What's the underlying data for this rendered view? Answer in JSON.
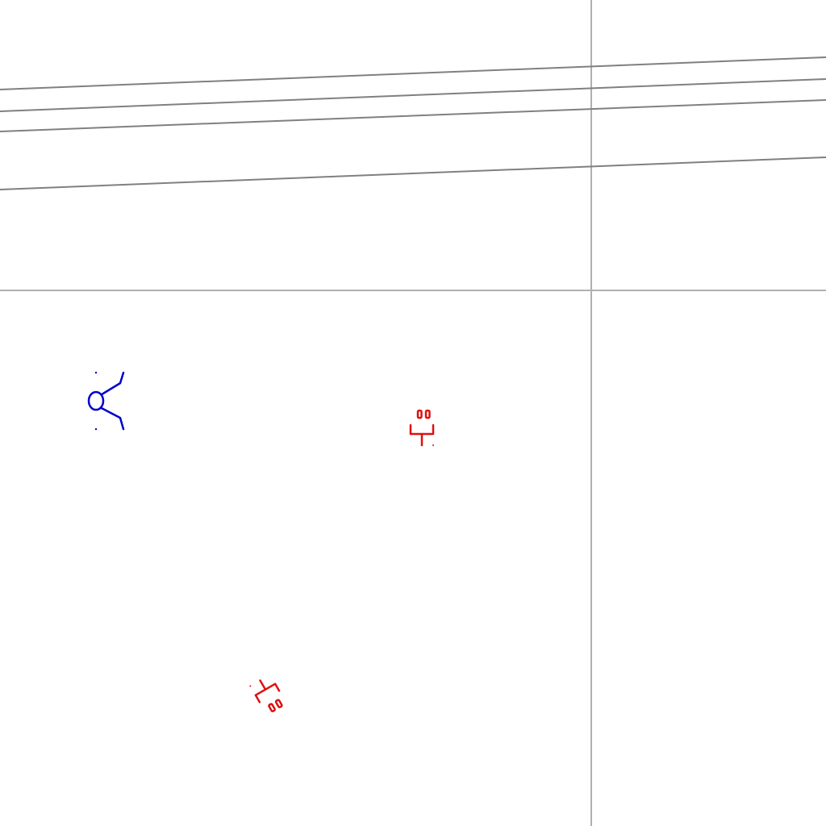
{
  "colors": {
    "background": "#ffffff",
    "grid_line": "#b0b0b0",
    "wire_line": "#808080",
    "blue_symbol": "#0000cc",
    "red_symbol": "#dd1111"
  },
  "symbols": [
    {
      "name": "blue-branch-symbol",
      "icon": "circle-with-two-branches",
      "color": "blue"
    },
    {
      "name": "red-upright-symbol",
      "icon": "bracket-with-double-box",
      "color": "red"
    },
    {
      "name": "red-rotated-symbol",
      "icon": "bracket-with-double-box-rotated",
      "color": "red"
    }
  ]
}
